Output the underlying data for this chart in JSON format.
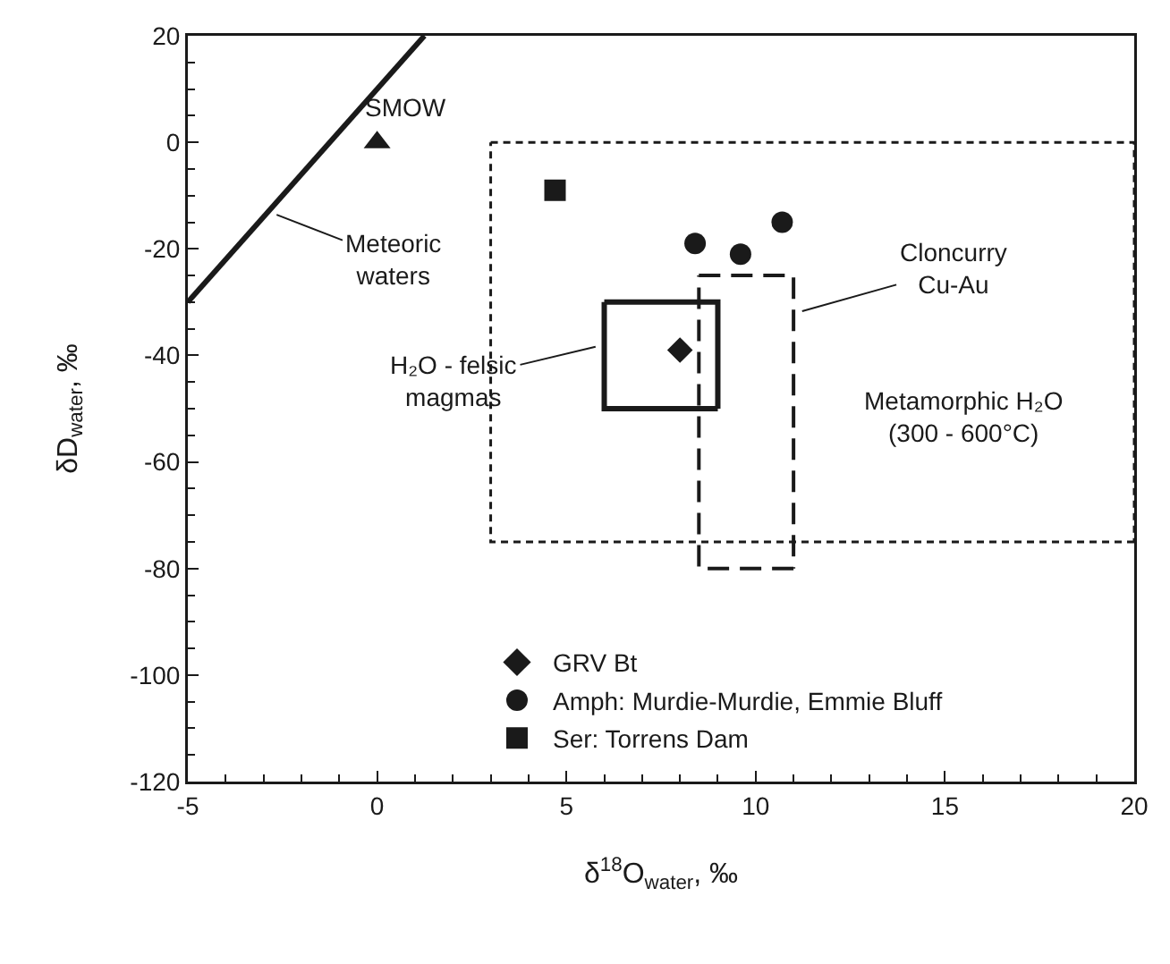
{
  "chart_data": {
    "type": "scatter",
    "xlabel": "δ$^{18}$O$_{water}$, ‰",
    "ylabel": "δD$_{water}$, ‰",
    "xlim": [
      -5,
      20
    ],
    "xticks": [
      -5,
      0,
      5,
      10,
      15,
      20
    ],
    "ylim": [
      -120,
      20
    ],
    "yticks": [
      -120,
      -100,
      -80,
      -60,
      -40,
      -20,
      0,
      20
    ],
    "grid": false,
    "legend": "bottom",
    "series": [
      {
        "type": "line",
        "color": "#1a1a1a",
        "line_style": "dotted",
        "x": [
          3,
          20,
          20,
          3,
          3
        ],
        "values": [
          0,
          0,
          -75,
          -75,
          0
        ]
      },
      {
        "type": "line",
        "name": "Cloncurry\nCu-Au",
        "color": "#1a1a1a",
        "line_style": "dashed",
        "x": [
          8.5,
          11,
          11,
          8.5,
          8.5
        ],
        "values": [
          -25,
          -25,
          -80,
          -80,
          -25
        ]
      },
      {
        "type": "line",
        "name": "H₂O - felsic\nmagmas",
        "color": "#1a1a1a",
        "line_style": "solid",
        "x": [
          6,
          9,
          9,
          6,
          6
        ],
        "values": [
          -30,
          -30,
          -50,
          -50,
          -30
        ]
      },
      {
        "type": "line",
        "name": "Meteoric\nwaters",
        "color": "#1a1a1a",
        "line_style": "solid",
        "x": [
          -5,
          1.25
        ],
        "values": [
          -30,
          20
        ]
      },
      {
        "name": "SMOW",
        "color": "#1a1a1a",
        "marker": "triangle",
        "x": [
          0
        ],
        "values": [
          0
        ]
      },
      {
        "name": "GRV Bt",
        "color": "#1a1a1a",
        "marker": "diamond",
        "x": [
          8
        ],
        "values": [
          -39
        ]
      },
      {
        "name": "Amph: Murdie-Murdie, Emmie Bluff",
        "color": "#1a1a1a",
        "marker": "circle",
        "x": [
          8.4,
          9.6,
          10.7
        ],
        "values": [
          -19,
          -21,
          -15
        ]
      },
      {
        "name": "Ser: Torrens Dam",
        "color": "#1a1a1a",
        "marker": "square",
        "x": [
          4.7
        ],
        "values": [
          -9
        ]
      }
    ],
    "annotations": [
      "Metamorphic H₂O\n(300 - 600°C)"
    ]
  }
}
